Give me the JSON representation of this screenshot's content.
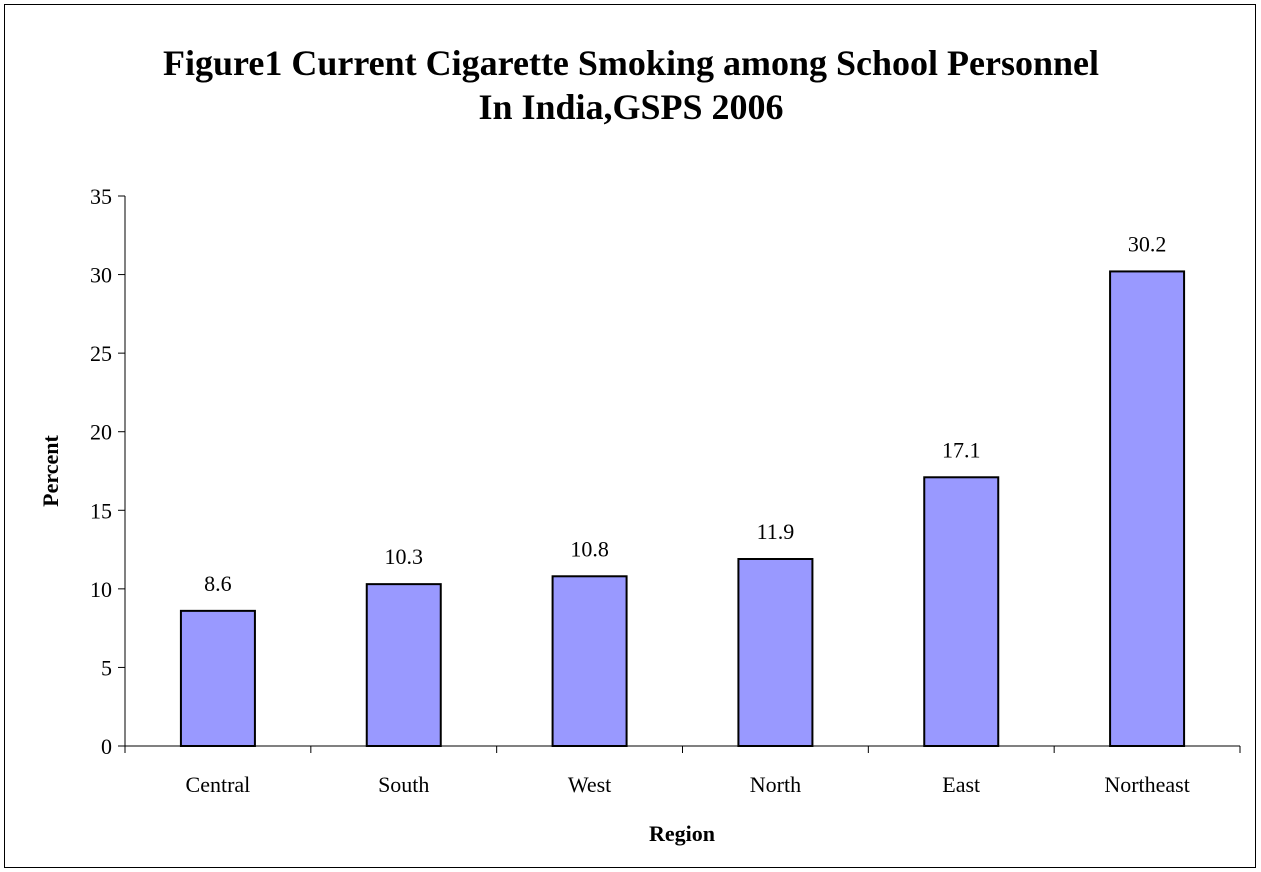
{
  "chart_data": {
    "type": "bar",
    "title": [
      "Figure1 Current Cigarette Smoking  among School Personnel",
      "In India,GSPS 2006"
    ],
    "xlabel": "Region",
    "ylabel": "Percent",
    "categories": [
      "Central",
      "South",
      "West",
      "North",
      "East",
      "Northeast"
    ],
    "values": [
      8.6,
      10.3,
      10.8,
      11.9,
      17.1,
      30.2
    ],
    "value_labels": [
      "8.6",
      "10.3",
      "10.8",
      "11.9",
      "17.1",
      "30.2"
    ],
    "ylim": [
      0,
      35
    ],
    "yticks": [
      "0",
      "5",
      "10",
      "15",
      "20",
      "25",
      "30",
      "35"
    ],
    "grid": false,
    "legend": "none",
    "bar_color": "#9999ff",
    "bar_edge_color": "#000000"
  }
}
